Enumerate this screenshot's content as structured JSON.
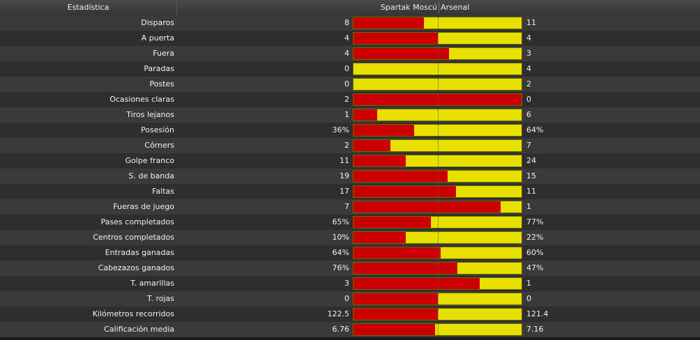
{
  "header": {
    "stat_label": "Estadística",
    "home_team": "Spartak Moscú",
    "away_team": "Arsenal"
  },
  "colors": {
    "home": "#cc0000",
    "away": "#e8e000"
  },
  "stats": [
    {
      "label": "Disparos",
      "home": "8",
      "away": "11",
      "home_share": 0.42
    },
    {
      "label": "A puerta",
      "home": "4",
      "away": "4",
      "home_share": 0.5
    },
    {
      "label": "Fuera",
      "home": "4",
      "away": "3",
      "home_share": 0.57
    },
    {
      "label": "Paradas",
      "home": "0",
      "away": "4",
      "home_share": 0.0
    },
    {
      "label": "Postes",
      "home": "0",
      "away": "2",
      "home_share": 0.0
    },
    {
      "label": "Ocasiones claras",
      "home": "2",
      "away": "0",
      "home_share": 1.0
    },
    {
      "label": "Tiros lejanos",
      "home": "1",
      "away": "6",
      "home_share": 0.14
    },
    {
      "label": "Posesión",
      "home": "36%",
      "away": "64%",
      "home_share": 0.36
    },
    {
      "label": "Córners",
      "home": "2",
      "away": "7",
      "home_share": 0.22
    },
    {
      "label": "Golpe franco",
      "home": "11",
      "away": "24",
      "home_share": 0.31
    },
    {
      "label": "S. de banda",
      "home": "19",
      "away": "15",
      "home_share": 0.56
    },
    {
      "label": "Faltas",
      "home": "17",
      "away": "11",
      "home_share": 0.61
    },
    {
      "label": "Fueras de juego",
      "home": "7",
      "away": "1",
      "home_share": 0.875
    },
    {
      "label": "Pases completados",
      "home": "65%",
      "away": "77%",
      "home_share": 0.46
    },
    {
      "label": "Centros completados",
      "home": "10%",
      "away": "22%",
      "home_share": 0.31
    },
    {
      "label": "Entradas ganadas",
      "home": "64%",
      "away": "60%",
      "home_share": 0.52
    },
    {
      "label": "Cabezazos ganados",
      "home": "76%",
      "away": "47%",
      "home_share": 0.62
    },
    {
      "label": "T. amarillas",
      "home": "3",
      "away": "1",
      "home_share": 0.75
    },
    {
      "label": "T. rojas",
      "home": "0",
      "away": "0",
      "home_share": 0.5
    },
    {
      "label": "Kilómetros recorridos",
      "home": "122.5",
      "away": "121.4",
      "home_share": 0.502
    },
    {
      "label": "Calificación media",
      "home": "6.76",
      "away": "7.16",
      "home_share": 0.486
    }
  ]
}
